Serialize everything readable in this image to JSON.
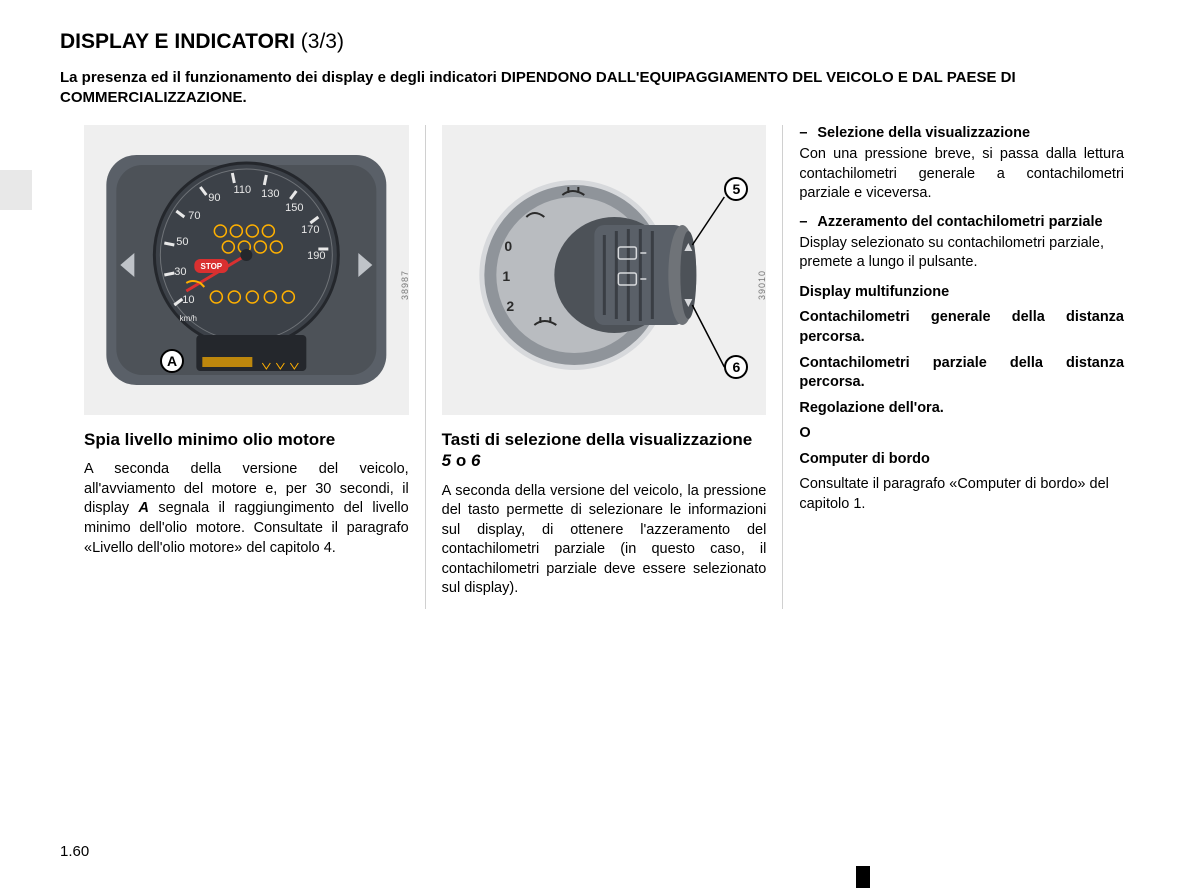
{
  "title": {
    "main": "DISPLAY E INDICATORI",
    "suffix": "(3/3)"
  },
  "subtitle": "La presenza ed il funzionamento dei display e degli indicatori DIPENDONO DALL'EQUIPAGGIAMENTO DEL VEICOLO E DAL PAESE DI COMMERCIALIZZAZIONE.",
  "page_number": "1.60",
  "colors": {
    "text": "#000000",
    "background": "#ffffff",
    "figure_bg": "#efefef",
    "divider": "#d0d0d0",
    "side_tab": "#e8e8e8",
    "gauge_body": "#5a6068",
    "gauge_face": "#3c4148",
    "gauge_accent": "#ffb000",
    "gauge_red": "#d93030",
    "knob_body": "#8f949a",
    "knob_dark": "#4d5258"
  },
  "column1": {
    "figure_id": "38987",
    "callout_label": "A",
    "heading": "Spia livello minimo olio motore",
    "body_html": "A seconda della versione del veicolo, all'avviamento del motore e, per 30 secondi, il display <b><i>A</i></b> segnala il raggiungimento del livello minimo dell'olio motore. Consultate il paragrafo «Livello dell'olio motore» del capitolo 4.",
    "gauge": {
      "ticks": [
        "10",
        "30",
        "50",
        "70",
        "90",
        "110",
        "130",
        "150",
        "170",
        "190"
      ],
      "unit": "km/h"
    }
  },
  "column2": {
    "figure_id": "39010",
    "callout_5": "5",
    "callout_6": "6",
    "heading_html": "Tasti di selezione della visualizzazione <i>5</i> o <i>6</i>",
    "body": "A seconda della versione del veicolo, la pressione del tasto permette di selezionare le informazioni sul display, di ottenere l'azzeramento del contachilometri parziale (in questo caso, il contachilometri parziale deve essere selezionato sul display).",
    "knob": {
      "positions": [
        "0",
        "1",
        "2"
      ]
    }
  },
  "column3": {
    "item1_label": "Selezione della visualizzazione",
    "item1_body": "Con una pressione breve, si passa dalla lettura contachilometri generale a contachilometri parziale e viceversa.",
    "item2_label": "Azzeramento del contachilometri parziale",
    "item2_body": "Display selezionato su contachilometri parziale, premete a lungo il pulsante.",
    "multi_heading": "Display multifunzione",
    "multi_line1": "Contachilometri generale della distanza percorsa.",
    "multi_line2": "Contachilometri parziale della distanza percorsa.",
    "multi_line3": "Regolazione dell'ora.",
    "divider_o": "O",
    "obc_heading": "Computer di bordo",
    "obc_body": "Consultate il paragrafo «Computer di bordo» del capitolo 1."
  }
}
